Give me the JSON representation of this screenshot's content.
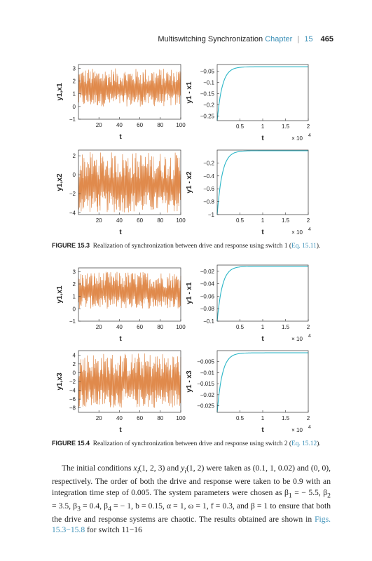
{
  "header": {
    "title": "Multiswitching Synchronization",
    "chapter": "Chapter",
    "sep": "|",
    "chapter_num": "15",
    "page": "465"
  },
  "figures": [
    {
      "label": "FIGURE 15.3",
      "caption": "Realization of synchronization between drive and response using switch 1 (",
      "eq_ref": "Eq. 15.11",
      "close": ")."
    },
    {
      "label": "FIGURE 15.4",
      "caption": "Realization of synchronization between drive and response using switch 2 (",
      "eq_ref": "Eq. 15.12",
      "close": ")."
    }
  ],
  "chart_data": [
    {
      "type": "line",
      "ylabel": "y1,x1",
      "xlabel": "t",
      "xlim": [
        0,
        100
      ],
      "ylim": [
        -1,
        3.3
      ],
      "xticks": [
        "20",
        "40",
        "60",
        "80",
        "100"
      ],
      "yticks": [
        "−1",
        "0",
        "1",
        "2",
        "3"
      ],
      "yvals": [
        -1,
        0,
        1,
        2,
        3
      ],
      "color": "#e08a4c",
      "oscill": true,
      "lo": 0.0,
      "hi": 3.0
    },
    {
      "type": "line",
      "ylabel": "y1 - x1",
      "xlabel": "t",
      "xscale": "× 10",
      "xexp": "4",
      "xlim": [
        0,
        2
      ],
      "ylim": [
        -0.27,
        -0.02
      ],
      "xticks": [
        "0.5",
        "1",
        "1.5",
        "2"
      ],
      "yticks": [
        "−0.25",
        "−0.2",
        "−0.15",
        "−0.1",
        "−0.05"
      ],
      "yvals": [
        -0.25,
        -0.2,
        -0.15,
        -0.1,
        -0.05
      ],
      "color": "#2bb6c7",
      "oscill": false,
      "start": -0.27,
      "end": -0.03
    },
    {
      "type": "line",
      "ylabel": "y1,x2",
      "xlabel": "t",
      "xlim": [
        0,
        100
      ],
      "ylim": [
        -4.2,
        2.6
      ],
      "xticks": [
        "20",
        "40",
        "60",
        "80",
        "100"
      ],
      "yticks": [
        "−4",
        "−2",
        "0",
        "2"
      ],
      "yvals": [
        -4,
        -2,
        0,
        2
      ],
      "color": "#e08a4c",
      "oscill": true,
      "lo": -4.0,
      "hi": 2.4
    },
    {
      "type": "line",
      "ylabel": "y1 - x2",
      "xlabel": "t",
      "xscale": "× 10",
      "xexp": "4",
      "xlim": [
        0,
        2
      ],
      "ylim": [
        -1.0,
        0.0
      ],
      "xticks": [
        "0.5",
        "1",
        "1.5",
        "2"
      ],
      "yticks": [
        "−1",
        "−0.8",
        "−0.6",
        "−0.4",
        "−0.2"
      ],
      "yvals": [
        -1,
        -0.8,
        -0.6,
        -0.4,
        -0.2
      ],
      "color": "#2bb6c7",
      "oscill": false,
      "start": -1.0,
      "end": -0.01
    },
    {
      "type": "line",
      "ylabel": "y1,x1",
      "xlabel": "t",
      "xlim": [
        0,
        100
      ],
      "ylim": [
        -1,
        3.3
      ],
      "xticks": [
        "20",
        "40",
        "60",
        "80",
        "100"
      ],
      "yticks": [
        "−1",
        "0",
        "1",
        "2",
        "3"
      ],
      "yvals": [
        -1,
        0,
        1,
        2,
        3
      ],
      "color": "#e08a4c",
      "oscill": true,
      "lo": 0.0,
      "hi": 3.0
    },
    {
      "type": "line",
      "ylabel": "y1 - x1",
      "xlabel": "t",
      "xscale": "× 10",
      "xexp": "4",
      "xlim": [
        0,
        2
      ],
      "ylim": [
        -0.1,
        -0.01
      ],
      "xticks": [
        "0.5",
        "1",
        "1.5",
        "2"
      ],
      "yticks": [
        "−0.1",
        "−0.08",
        "−0.06",
        "−0.04",
        "−0.02"
      ],
      "yvals": [
        -0.1,
        -0.08,
        -0.06,
        -0.04,
        -0.02
      ],
      "color": "#2bb6c7",
      "oscill": false,
      "start": -0.1,
      "end": -0.012
    },
    {
      "type": "line",
      "ylabel": "y1,x3",
      "xlabel": "t",
      "xlim": [
        0,
        100
      ],
      "ylim": [
        -9,
        5
      ],
      "xticks": [
        "20",
        "40",
        "60",
        "80",
        "100"
      ],
      "yticks": [
        "−8",
        "−6",
        "−4",
        "−2",
        "0",
        "2",
        "4"
      ],
      "yvals": [
        -8,
        -6,
        -4,
        -2,
        0,
        2,
        4
      ],
      "color": "#e08a4c",
      "oscill": true,
      "lo": -8.0,
      "hi": 4.5
    },
    {
      "type": "line",
      "ylabel": "y1 - x3",
      "xlabel": "t",
      "xscale": "× 10",
      "xexp": "4",
      "xlim": [
        0,
        2
      ],
      "ylim": [
        -0.028,
        0.0
      ],
      "xticks": [
        "0.5",
        "1",
        "1.5",
        "2"
      ],
      "yticks": [
        "−0.025",
        "−0.02",
        "−0.015",
        "−0.01",
        "−0.005"
      ],
      "yvals": [
        -0.025,
        -0.02,
        -0.015,
        -0.01,
        -0.005
      ],
      "color": "#2bb6c7",
      "oscill": false,
      "start": -0.028,
      "end": -0.001
    }
  ],
  "body": {
    "s1": "The initial conditions ",
    "s2": "x",
    "s3": "i",
    "s4": "(1, 2, 3) and ",
    "s5": "y",
    "s6": "i",
    "s7": "(1, 2) were taken as (0.1, 1, 0.02) and (0, 0), respectively. The order of both the drive and response were taken to be 0.9 with an integration time step of 0.005. The system parameters were chosen as β",
    "s8": "1",
    "s9": " = − 5.5, β",
    "s10": "2",
    "s11": " = 3.5, β",
    "s12": "3",
    "s13": " = 0.4, β",
    "s14": "4",
    "s15": " = − 1, b = 0.15, α = 1, ω = 1, f = 0.3, and β = 1 to ensure that both the drive and response systems are chaotic. The results obtained are shown in ",
    "link": "Figs. 15.3−15.8",
    "s16": " for switch 11−16"
  }
}
